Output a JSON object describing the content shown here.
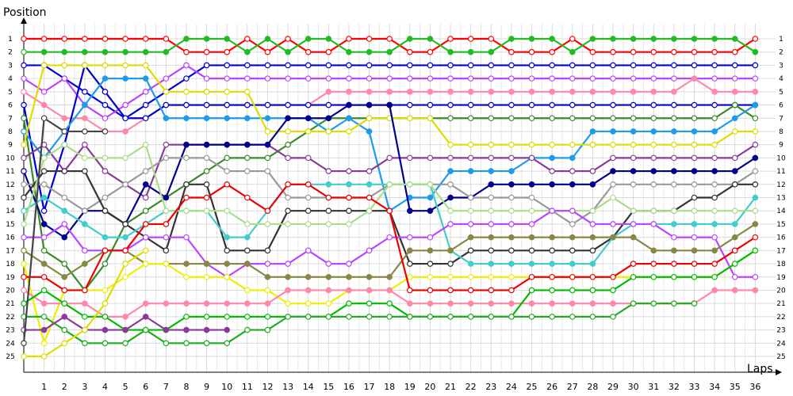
{
  "chart_data": {
    "type": "line",
    "title": "",
    "ylabel": "Position",
    "xlabel": "Laps",
    "x": [
      1,
      2,
      3,
      4,
      5,
      6,
      7,
      8,
      9,
      10,
      11,
      12,
      13,
      14,
      15,
      16,
      17,
      18,
      19,
      20,
      21,
      22,
      23,
      24,
      25,
      26,
      27,
      28,
      29,
      30,
      31,
      32,
      33,
      34,
      35,
      36
    ],
    "xlim": [
      0,
      37
    ],
    "ylim": [
      1,
      25
    ],
    "y_inverted": true,
    "grid": true,
    "legend": "none",
    "start_positions": [
      1,
      2,
      3,
      4,
      5,
      6,
      7,
      8,
      9,
      10,
      11,
      12,
      13,
      14,
      15,
      16,
      17,
      18,
      19,
      20,
      21,
      22,
      23,
      24,
      25
    ],
    "series": [
      {
        "color": "#ff0000",
        "values": [
          1,
          1,
          1,
          1,
          1,
          1,
          1,
          2,
          2,
          2,
          1,
          2,
          1,
          2,
          2,
          1,
          1,
          1,
          2,
          2,
          1,
          1,
          1,
          2,
          2,
          2,
          1,
          2,
          2,
          2,
          2,
          2,
          2,
          2,
          2,
          1
        ]
      },
      {
        "color": "#22bb22",
        "values": [
          2,
          2,
          2,
          2,
          2,
          2,
          2,
          1,
          1,
          1,
          2,
          1,
          2,
          1,
          1,
          2,
          2,
          2,
          1,
          1,
          2,
          2,
          2,
          1,
          1,
          1,
          2,
          1,
          1,
          1,
          1,
          1,
          1,
          1,
          1,
          2
        ]
      },
      {
        "color": "#0000dd",
        "values": [
          3,
          4,
          5,
          6,
          7,
          6,
          5,
          4,
          3,
          3,
          3,
          3,
          3,
          3,
          3,
          3,
          3,
          3,
          3,
          3,
          3,
          3,
          3,
          3,
          3,
          3,
          3,
          3,
          3,
          3,
          3,
          3,
          3,
          3,
          3,
          3
        ]
      },
      {
        "color": "#bb44ff",
        "values": [
          5,
          4,
          6,
          7,
          6,
          5,
          4,
          3,
          4,
          4,
          4,
          4,
          4,
          4,
          4,
          4,
          4,
          4,
          4,
          4,
          4,
          4,
          4,
          4,
          4,
          4,
          4,
          4,
          4,
          4,
          4,
          4,
          4,
          4,
          4,
          4
        ]
      },
      {
        "color": "#ff88aa",
        "values": [
          6,
          7,
          7,
          8,
          8,
          7,
          6,
          6,
          6,
          6,
          6,
          6,
          6,
          6,
          5,
          5,
          5,
          5,
          5,
          5,
          5,
          5,
          5,
          5,
          5,
          5,
          5,
          5,
          5,
          5,
          5,
          5,
          4,
          5,
          5,
          5
        ]
      },
      {
        "color": "#0000cc",
        "values": [
          14,
          9,
          3,
          5,
          7,
          7,
          6,
          6,
          6,
          6,
          6,
          6,
          6,
          6,
          6,
          6,
          6,
          6,
          6,
          6,
          6,
          6,
          6,
          6,
          6,
          6,
          6,
          6,
          6,
          6,
          6,
          6,
          6,
          6,
          6,
          6
        ]
      },
      {
        "color": "#3a8a2a",
        "values": [
          17,
          18,
          20,
          18,
          15,
          14,
          13,
          12,
          11,
          10,
          10,
          10,
          9,
          8,
          7,
          7,
          7,
          7,
          7,
          7,
          7,
          7,
          7,
          7,
          7,
          7,
          7,
          7,
          7,
          7,
          7,
          7,
          7,
          7,
          6,
          7
        ]
      },
      {
        "color": "#1f9be9",
        "values": [
          10,
          8,
          6,
          4,
          4,
          4,
          7,
          7,
          7,
          7,
          7,
          7,
          7,
          7,
          8,
          7,
          8,
          14,
          13,
          13,
          11,
          11,
          11,
          11,
          10,
          10,
          10,
          8,
          8,
          8,
          8,
          8,
          8,
          8,
          7,
          6
        ]
      },
      {
        "color": "#dddd00",
        "values": [
          3,
          3,
          3,
          3,
          3,
          3,
          5,
          5,
          5,
          5,
          5,
          8,
          8,
          8,
          8,
          8,
          7,
          7,
          7,
          7,
          9,
          9,
          9,
          9,
          9,
          9,
          9,
          9,
          9,
          9,
          9,
          9,
          9,
          9,
          8,
          8
        ]
      },
      {
        "color": "#8b3a9a",
        "values": [
          9,
          11,
          9,
          11,
          12,
          13,
          9,
          9,
          9,
          9,
          9,
          9,
          10,
          10,
          11,
          11,
          11,
          10,
          10,
          10,
          10,
          10,
          10,
          10,
          10,
          11,
          11,
          11,
          10,
          10,
          10,
          10,
          10,
          10,
          10,
          9
        ]
      },
      {
        "color": "#00008b",
        "values": [
          15,
          16,
          14,
          14,
          15,
          12,
          13,
          9,
          9,
          9,
          9,
          9,
          7,
          7,
          7,
          6,
          6,
          6,
          14,
          14,
          13,
          13,
          12,
          12,
          12,
          12,
          12,
          12,
          11,
          11,
          11,
          11,
          11,
          11,
          11,
          10
        ]
      },
      {
        "color": "#999999",
        "values": [
          12,
          13,
          14,
          13,
          12,
          11,
          10,
          10,
          10,
          11,
          11,
          11,
          13,
          13,
          13,
          13,
          13,
          12,
          12,
          12,
          12,
          13,
          13,
          13,
          13,
          14,
          15,
          14,
          12,
          12,
          12,
          12,
          12,
          12,
          12,
          11
        ]
      },
      {
        "color": "#333333",
        "values": [
          11,
          11,
          11,
          14,
          15,
          16,
          17,
          12,
          12,
          17,
          17,
          17,
          14,
          14,
          14,
          14,
          14,
          14,
          18,
          18,
          18,
          17,
          17,
          17,
          17,
          17,
          17,
          17,
          16,
          14,
          14,
          14,
          13,
          13,
          12,
          12
        ]
      },
      {
        "color": "#44cccc",
        "values": [
          13,
          14,
          15,
          16,
          16,
          15,
          14,
          14,
          14,
          16,
          16,
          14,
          12,
          12,
          12,
          12,
          12,
          12,
          12,
          12,
          17,
          18,
          18,
          18,
          18,
          18,
          18,
          18,
          16,
          15,
          15,
          15,
          15,
          15,
          15,
          13
        ]
      },
      {
        "color": "#aadd88",
        "values": [
          10,
          9,
          10,
          10,
          10,
          9,
          14,
          14,
          14,
          14,
          15,
          15,
          15,
          15,
          15,
          15,
          14,
          12,
          12,
          12,
          14,
          14,
          14,
          14,
          14,
          14,
          14,
          14,
          13,
          14,
          14,
          14,
          14,
          14,
          14,
          14
        ]
      },
      {
        "color": "#bb44ff",
        "values": [
          16,
          15,
          17,
          17,
          17,
          16,
          16,
          16,
          18,
          19,
          18,
          18,
          18,
          17,
          18,
          18,
          17,
          16,
          16,
          16,
          15,
          15,
          15,
          15,
          15,
          14,
          14,
          15,
          15,
          15,
          15,
          16,
          16,
          16,
          19,
          19
        ]
      },
      {
        "color": "#888844",
        "values": [
          18,
          19,
          18,
          17,
          17,
          18,
          18,
          18,
          18,
          18,
          18,
          19,
          19,
          19,
          19,
          19,
          19,
          19,
          17,
          17,
          17,
          16,
          16,
          16,
          16,
          16,
          16,
          16,
          16,
          16,
          17,
          17,
          17,
          17,
          16,
          15
        ]
      },
      {
        "color": "#eeee00",
        "values": [
          24,
          20,
          20,
          20,
          19,
          18,
          18,
          19,
          19,
          19,
          20,
          20,
          21,
          21,
          21,
          20,
          20,
          20,
          19,
          19,
          19,
          19,
          19,
          19,
          19,
          19,
          19,
          19,
          19,
          19,
          19,
          19,
          19,
          19,
          18,
          17
        ]
      },
      {
        "color": "#ee0000",
        "values": [
          19,
          20,
          20,
          17,
          17,
          15,
          15,
          13,
          13,
          12,
          13,
          14,
          12,
          12,
          13,
          13,
          13,
          14,
          20,
          20,
          20,
          20,
          20,
          20,
          19,
          19,
          19,
          19,
          19,
          18,
          18,
          18,
          18,
          18,
          17,
          16
        ]
      },
      {
        "color": "#ff88aa",
        "values": [
          21,
          21,
          21,
          22,
          22,
          21,
          21,
          21,
          21,
          21,
          21,
          21,
          20,
          20,
          20,
          20,
          20,
          20,
          21,
          21,
          21,
          21,
          21,
          21,
          21,
          21,
          21,
          21,
          21,
          21,
          21,
          21,
          21,
          20,
          20,
          20
        ]
      },
      {
        "color": "#00bb00",
        "values": [
          20,
          21,
          22,
          22,
          23,
          23,
          23,
          22,
          22,
          22,
          22,
          22,
          22,
          22,
          22,
          21,
          21,
          21,
          22,
          22,
          22,
          22,
          22,
          22,
          20,
          20,
          20,
          20,
          20,
          19,
          19,
          19,
          19,
          19,
          18,
          17
        ]
      },
      {
        "color": "#22aa22",
        "values": [
          22,
          23,
          24,
          24,
          24,
          23,
          24,
          24,
          24,
          24,
          23,
          23,
          22,
          22,
          22,
          22,
          22,
          22,
          22,
          22,
          22,
          22,
          22,
          22,
          22,
          22,
          22,
          22,
          22,
          21,
          21,
          21,
          21,
          0,
          0,
          0
        ]
      },
      {
        "color": "#8b3a9a",
        "values": [
          23,
          22,
          23,
          23,
          23,
          22,
          23,
          23,
          23,
          23,
          0,
          0,
          0,
          0,
          0,
          0,
          0,
          0,
          0,
          0,
          0,
          0,
          0,
          0,
          0,
          0,
          0,
          0,
          0,
          0,
          0,
          0,
          0,
          0,
          0,
          0
        ]
      },
      {
        "color": "#444444",
        "values": [
          7,
          8,
          8,
          8,
          0,
          0,
          0,
          0,
          0,
          0,
          0,
          0,
          0,
          0,
          0,
          0,
          0,
          0,
          0,
          0,
          0,
          0,
          0,
          0,
          0,
          0,
          0,
          0,
          0,
          0,
          0,
          0,
          0,
          0,
          0,
          0
        ]
      },
      {
        "color": "#dddd00",
        "values": [
          25,
          24,
          23,
          21,
          18,
          17,
          0,
          0,
          0,
          0,
          0,
          0,
          0,
          0,
          0,
          0,
          0,
          0,
          0,
          0,
          0,
          0,
          0,
          0,
          0,
          0,
          0,
          0,
          0,
          0,
          0,
          0,
          0,
          0,
          0,
          0
        ]
      }
    ]
  }
}
